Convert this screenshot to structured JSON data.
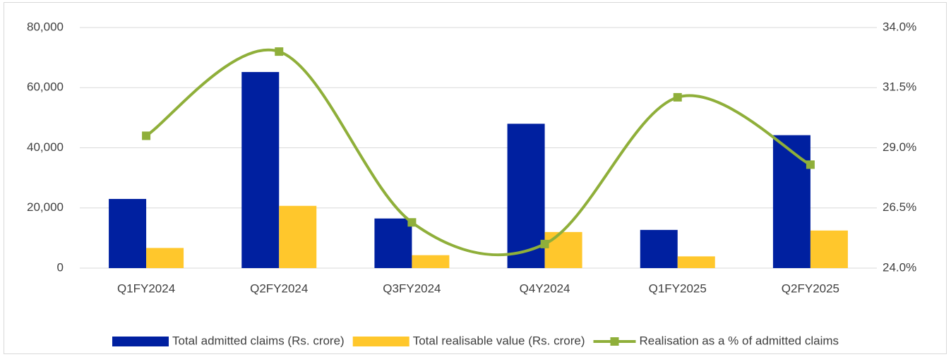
{
  "chart_data": {
    "type": "bar",
    "categories": [
      "Q1FY2024",
      "Q2FY2024",
      "Q3FY2024",
      "Q4Y2024",
      "Q1FY2025",
      "Q2FY2025"
    ],
    "series": [
      {
        "name": "Total admitted claims (Rs. crore)",
        "color": "#0020a0",
        "values": [
          23000,
          65200,
          16500,
          48000,
          12700,
          44200
        ]
      },
      {
        "name": "Total realisable value (Rs. crore)",
        "color": "#ffc72c",
        "values": [
          6700,
          20700,
          4300,
          12000,
          3900,
          12500
        ]
      },
      {
        "name": "Realisation as a % of admitted claims",
        "color": "#8faf3a",
        "type": "line",
        "axis": "y2",
        "values": [
          29.5,
          33.0,
          25.9,
          25.0,
          31.1,
          28.3
        ]
      }
    ],
    "ylim": [
      0,
      80000
    ],
    "yticks": [
      0,
      {
        "value": 20000,
        "label": "20,000"
      },
      {
        "value": 40000,
        "label": "40,000"
      },
      {
        "value": 60000,
        "label": "60,000"
      },
      {
        "value": 80000,
        "label": "80,000"
      }
    ],
    "y2lim": [
      24,
      34
    ],
    "y2ticks": [
      {
        "value": 24,
        "label": "24.0%"
      },
      {
        "value": 26.5,
        "label": "26.5%"
      },
      {
        "value": 29,
        "label": "29.0%"
      },
      {
        "value": 31.5,
        "label": "31.5%"
      },
      {
        "value": 34,
        "label": "34.0%"
      }
    ],
    "grid": true,
    "legend": "bottom"
  }
}
